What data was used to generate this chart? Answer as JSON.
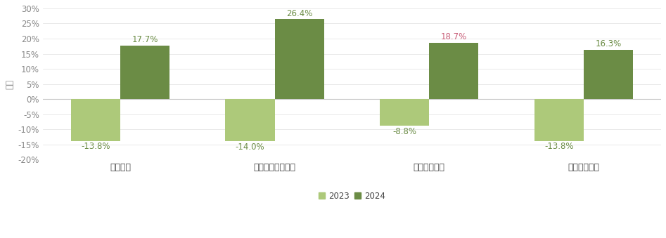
{
  "categories": [
    "恆生指數",
    "恆生中國企業指數",
    "恆生科技指數",
    "恆生綜合指數"
  ],
  "values_2023": [
    -13.8,
    -14.0,
    -8.8,
    -13.8
  ],
  "values_2024": [
    17.7,
    26.4,
    18.7,
    16.3
  ],
  "color_2023": "#adc97a",
  "color_2024": "#6b8c45",
  "ylabel": "變動",
  "ylim": [
    -20,
    30
  ],
  "yticks": [
    -20,
    -15,
    -10,
    -5,
    0,
    5,
    10,
    15,
    20,
    25,
    30
  ],
  "legend_labels": [
    "2023",
    "2024"
  ],
  "background_color": "#ffffff",
  "bar_width": 0.32,
  "annot_color_2023": "#6b8c45",
  "annot_color_2024_default": "#6b8c45",
  "annot_color_2024_special": "#c9607a",
  "annot_special_index": 2,
  "annotation_fontsize": 8.5,
  "tick_fontsize": 8.5,
  "xlabel_fontsize": 9,
  "ylabel_fontsize": 8.5,
  "grid_color": "#e0e0e0",
  "zero_line_color": "#c8c8c8",
  "tick_color": "#888888",
  "xtick_color": "#444444"
}
